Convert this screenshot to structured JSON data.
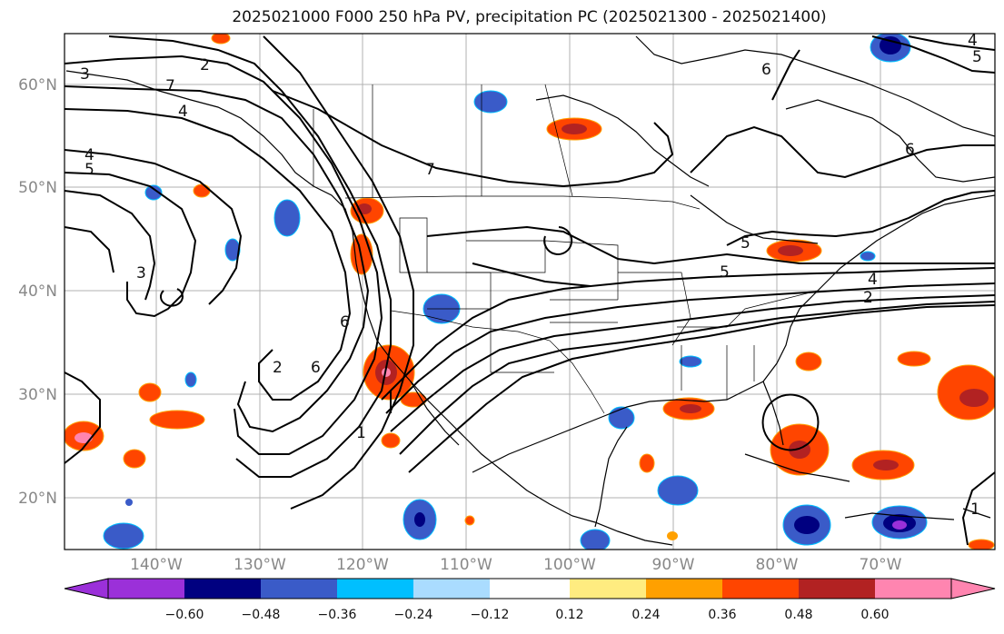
{
  "title": "2025021000 F000 250 hPa PV, precipitation PC (2025021300 - 2025021400)",
  "lat_labels": [
    "60°N",
    "50°N",
    "40°N",
    "30°N",
    "20°N"
  ],
  "lon_labels": [
    "140°W",
    "130°W",
    "120°W",
    "110°W",
    "100°W",
    "90°W",
    "80°W",
    "70°W"
  ],
  "pv_contour_labels": [
    "2",
    "3",
    "4",
    "5",
    "6",
    "7",
    "1",
    "2",
    "3",
    "4",
    "5",
    "6",
    "7",
    "6",
    "5",
    "4",
    "2",
    "1",
    "6",
    "4",
    "5"
  ],
  "colorbar": {
    "ticks": [
      "−0.60",
      "−0.48",
      "−0.36",
      "−0.24",
      "−0.12",
      "0.12",
      "0.24",
      "0.36",
      "0.48",
      "0.60"
    ],
    "colors": [
      "#9b30d9",
      "#000080",
      "#3a5bc8",
      "#00bfff",
      "#aadcff",
      "#ffffff",
      "#ffec80",
      "#ffa000",
      "#ff4500",
      "#b22222",
      "#ff85b0"
    ]
  }
}
